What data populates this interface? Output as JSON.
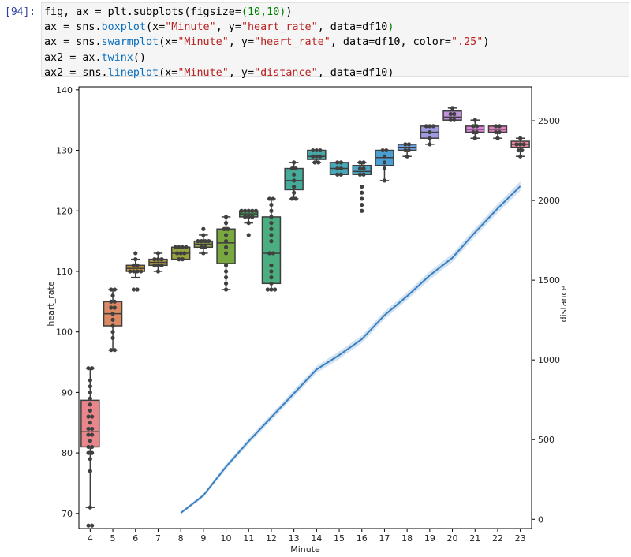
{
  "prompt": "[94]:",
  "code_lines": [
    [
      {
        "t": "fig, ax = plt.subplots(figsize=",
        "c": ""
      },
      {
        "t": "(10,10)",
        "c": "k"
      },
      {
        "t": ")",
        "c": ""
      }
    ],
    [
      {
        "t": "ax = sns.",
        "c": ""
      },
      {
        "t": "boxplot",
        "c": "nb"
      },
      {
        "t": "(x=",
        "c": ""
      },
      {
        "t": "\"Minute\"",
        "c": "s"
      },
      {
        "t": ", y=",
        "c": ""
      },
      {
        "t": "\"heart_rate\"",
        "c": "s"
      },
      {
        "t": ", data=df10",
        "c": ""
      },
      {
        "t": ")",
        "c": "k"
      }
    ],
    [
      {
        "t": "ax = sns.",
        "c": ""
      },
      {
        "t": "swarmplot",
        "c": "nb"
      },
      {
        "t": "(x=",
        "c": ""
      },
      {
        "t": "\"Minute\"",
        "c": "s"
      },
      {
        "t": ", y=",
        "c": ""
      },
      {
        "t": "\"heart_rate\"",
        "c": "s"
      },
      {
        "t": ", data=df10, color=",
        "c": ""
      },
      {
        "t": "\".25\"",
        "c": "s"
      },
      {
        "t": ")",
        "c": ""
      }
    ],
    [
      {
        "t": "ax2 = ax.",
        "c": ""
      },
      {
        "t": "twinx",
        "c": "nb"
      },
      {
        "t": "()",
        "c": ""
      }
    ],
    [
      {
        "t": "ax2 = sns.",
        "c": ""
      },
      {
        "t": "lineplot",
        "c": "nb"
      },
      {
        "t": "(x=",
        "c": ""
      },
      {
        "t": "\"Minute\"",
        "c": "s"
      },
      {
        "t": ", y=",
        "c": ""
      },
      {
        "t": "\"distance\"",
        "c": "s"
      },
      {
        "t": ", data=df10)",
        "c": ""
      }
    ]
  ],
  "chart_data": {
    "type": "box",
    "xlabel": "Minute",
    "ylabel": "heart_rate",
    "y2label": "distance",
    "categories": [
      "4",
      "5",
      "6",
      "7",
      "8",
      "9",
      "10",
      "11",
      "12",
      "13",
      "14",
      "15",
      "16",
      "17",
      "18",
      "19",
      "20",
      "21",
      "22",
      "23"
    ],
    "ylim": [
      67.5,
      140.5
    ],
    "y2lim": [
      -58,
      2713
    ],
    "yticks": [
      70,
      80,
      90,
      100,
      110,
      120,
      130,
      140
    ],
    "y2ticks": [
      0,
      500,
      1000,
      1500,
      2000,
      2500
    ],
    "box_colors": [
      "#e8868c",
      "#dd8a64",
      "#cc9a3e",
      "#b8a040",
      "#9aa43e",
      "#9aad4a",
      "#7aa840",
      "#4ead5a",
      "#4aae80",
      "#44ac98",
      "#47aaa8",
      "#48a8b8",
      "#4aa6c6",
      "#4aa0d3",
      "#6e9ee0",
      "#a09be0",
      "#c391de",
      "#d985d6",
      "#e07fbe",
      "#e5879e"
    ],
    "boxes": [
      {
        "q1": 81,
        "median": 83.5,
        "q3": 88.7,
        "whislo": 71,
        "whishi": 94
      },
      {
        "q1": 101,
        "median": 103,
        "q3": 105,
        "whislo": 97,
        "whishi": 107
      },
      {
        "q1": 110,
        "median": 110.5,
        "q3": 111,
        "whislo": 109,
        "whishi": 112
      },
      {
        "q1": 111,
        "median": 111.5,
        "q3": 112,
        "whislo": 110,
        "whishi": 113
      },
      {
        "q1": 112,
        "median": 113,
        "q3": 114,
        "whislo": 112,
        "whishi": 114
      },
      {
        "q1": 114,
        "median": 114.5,
        "q3": 115,
        "whislo": 113,
        "whishi": 116
      },
      {
        "q1": 111.3,
        "median": 114.7,
        "q3": 117,
        "whislo": 107,
        "whishi": 119
      },
      {
        "q1": 119,
        "median": 119.5,
        "q3": 120,
        "whislo": 118,
        "whishi": 120
      },
      {
        "q1": 108,
        "median": 113,
        "q3": 119,
        "whislo": 107,
        "whishi": 122
      },
      {
        "q1": 123.5,
        "median": 125,
        "q3": 127,
        "whislo": 122,
        "whishi": 128
      },
      {
        "q1": 128.5,
        "median": 129,
        "q3": 130,
        "whislo": 128,
        "whishi": 130
      },
      {
        "q1": 126,
        "median": 127,
        "q3": 128,
        "whislo": 126,
        "whishi": 128
      },
      {
        "q1": 126,
        "median": 126.5,
        "q3": 127.5,
        "whislo": 126,
        "whishi": 128
      },
      {
        "q1": 127.5,
        "median": 128.8,
        "q3": 130,
        "whislo": 125,
        "whishi": 130
      },
      {
        "q1": 130,
        "median": 130.5,
        "q3": 131,
        "whislo": 129,
        "whishi": 131
      },
      {
        "q1": 132,
        "median": 133,
        "q3": 134,
        "whislo": 131,
        "whishi": 134
      },
      {
        "q1": 135,
        "median": 135.5,
        "q3": 136.5,
        "whislo": 135,
        "whishi": 137
      },
      {
        "q1": 133,
        "median": 133.5,
        "q3": 134,
        "whislo": 132,
        "whishi": 135
      },
      {
        "q1": 133,
        "median": 133.5,
        "q3": 134,
        "whislo": 132,
        "whishi": 134
      },
      {
        "q1": 130.5,
        "median": 131,
        "q3": 131.5,
        "whislo": 129,
        "whishi": 132
      }
    ],
    "swarm": [
      [
        68,
        68,
        71,
        77,
        79,
        80,
        80,
        81,
        81,
        82,
        83,
        83,
        84,
        84,
        85,
        86,
        86,
        87,
        88,
        89,
        90,
        91,
        92,
        94,
        94
      ],
      [
        97,
        97,
        99,
        100,
        101,
        102,
        103,
        104,
        104,
        105,
        105,
        106,
        107,
        107
      ],
      [
        107,
        107,
        110,
        110,
        110,
        110,
        111,
        111,
        112,
        113
      ],
      [
        110,
        111,
        111,
        111,
        112,
        112,
        112,
        113
      ],
      [
        112,
        112,
        113,
        113,
        113,
        114,
        114,
        114,
        114
      ],
      [
        113,
        114,
        114,
        115,
        115,
        115,
        115,
        116,
        117
      ],
      [
        107,
        108,
        109,
        110,
        111,
        113,
        114,
        115,
        116,
        117,
        117,
        118,
        119
      ],
      [
        116,
        118,
        119,
        119,
        119,
        120,
        120,
        120,
        120,
        120
      ],
      [
        107,
        107,
        107,
        108,
        109,
        110,
        111,
        113,
        113,
        115,
        116,
        117,
        118,
        119,
        120,
        121,
        122,
        122
      ],
      [
        122,
        122,
        123,
        124,
        125,
        126,
        127,
        127,
        128
      ],
      [
        128,
        128,
        129,
        129,
        129,
        130,
        130,
        130
      ],
      [
        126,
        126,
        127,
        127,
        128,
        128
      ],
      [
        120,
        121,
        122,
        123,
        124,
        126,
        126,
        127,
        127,
        128,
        128
      ],
      [
        125,
        127,
        128,
        129,
        130,
        130
      ],
      [
        129,
        130,
        130,
        131,
        131
      ],
      [
        131,
        132,
        133,
        134,
        134,
        134
      ],
      [
        135,
        135,
        136,
        136,
        137
      ],
      [
        132,
        133,
        133,
        134,
        134,
        135
      ],
      [
        132,
        133,
        133,
        134,
        134
      ],
      [
        129,
        130,
        130,
        131,
        131,
        131,
        132
      ]
    ],
    "line": {
      "x": [
        "8",
        "9",
        "10",
        "11",
        "12",
        "13",
        "14",
        "15",
        "16",
        "17",
        "18",
        "19",
        "20",
        "21",
        "22",
        "23"
      ],
      "y": [
        40,
        150,
        330,
        490,
        640,
        790,
        940,
        1030,
        1130,
        1280,
        1400,
        1530,
        1640,
        1800,
        1950,
        2090
      ],
      "ci_halfwidth": [
        8,
        12,
        16,
        18,
        20,
        22,
        22,
        24,
        24,
        24,
        24,
        26,
        26,
        26,
        28,
        30
      ],
      "color": "#3a7fc1"
    }
  }
}
